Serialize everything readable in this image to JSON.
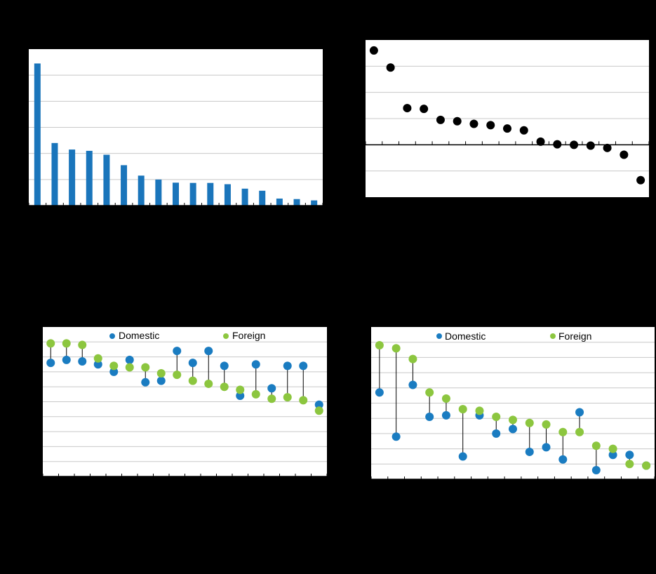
{
  "colors": {
    "bar": "#1a75bb",
    "dot": "#000000",
    "domestic": "#1a7cc1",
    "foreign": "#8cc63f",
    "grid": "#c8c8c8",
    "connector": "#000000"
  },
  "chart_data": [
    {
      "type": "bar",
      "title": "",
      "xlabel": "",
      "ylabel": "",
      "ylim": [
        0,
        6
      ],
      "grid": true,
      "values": [
        5.45,
        2.4,
        2.15,
        2.1,
        1.95,
        1.55,
        1.15,
        1.0,
        0.88,
        0.87,
        0.87,
        0.82,
        0.65,
        0.57,
        0.27,
        0.25,
        0.2
      ]
    },
    {
      "type": "scatter",
      "title": "",
      "xlabel": "",
      "ylabel": "",
      "ylim": [
        -2,
        4
      ],
      "grid": true,
      "values": [
        3.6,
        2.95,
        1.4,
        1.37,
        0.95,
        0.9,
        0.8,
        0.75,
        0.62,
        0.55,
        0.12,
        0.02,
        0.0,
        -0.03,
        -0.12,
        -0.38,
        -1.35
      ]
    },
    {
      "type": "scatter",
      "title": "",
      "xlabel": "",
      "ylabel": "",
      "ylim": [
        0,
        10
      ],
      "grid": true,
      "legend": "top",
      "series": [
        {
          "name": "Domestic",
          "values": [
            7.6,
            7.8,
            7.7,
            7.5,
            7.0,
            7.8,
            6.3,
            6.4,
            8.4,
            7.6,
            8.4,
            7.4,
            5.4,
            7.5,
            5.9,
            7.4,
            7.4,
            4.8
          ]
        },
        {
          "name": "Foreign",
          "values": [
            8.9,
            8.9,
            8.8,
            7.9,
            7.4,
            7.3,
            7.3,
            6.9,
            6.8,
            6.4,
            6.2,
            6.0,
            5.8,
            5.5,
            5.2,
            5.3,
            5.1,
            4.4
          ]
        }
      ]
    },
    {
      "type": "scatter",
      "title": "",
      "xlabel": "",
      "ylabel": "",
      "ylim": [
        0,
        10
      ],
      "grid": true,
      "legend": "top",
      "series": [
        {
          "name": "Domestic",
          "values": [
            5.7,
            2.8,
            6.2,
            4.1,
            4.2,
            1.5,
            4.2,
            3.0,
            3.3,
            1.8,
            2.1,
            1.3,
            4.4,
            0.6,
            1.6,
            1.6,
            0.9
          ]
        },
        {
          "name": "Foreign",
          "values": [
            8.8,
            8.6,
            7.9,
            5.7,
            5.3,
            4.6,
            4.5,
            4.1,
            3.9,
            3.7,
            3.6,
            3.1,
            3.1,
            2.2,
            2.0,
            1.0,
            0.9
          ]
        }
      ]
    }
  ]
}
